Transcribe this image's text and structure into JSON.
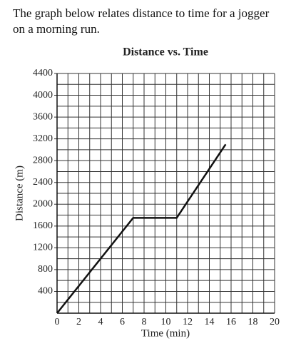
{
  "question": "The graph below relates distance to time for a jogger on a morning run.",
  "chart_data": {
    "type": "line",
    "title": "Distance vs. Time",
    "x_label": "Time (min)",
    "y_label": "Distance (m)",
    "x": [
      0,
      7,
      11,
      15.5
    ],
    "values": [
      0,
      1750,
      1750,
      3100
    ],
    "color": "#111111",
    "xlim": [
      0,
      20
    ],
    "xticks": [
      0,
      2,
      4,
      6,
      8,
      10,
      12,
      14,
      16,
      18,
      20
    ],
    "ylim": [
      0,
      4400
    ],
    "yticks": [
      400,
      800,
      1200,
      1600,
      2000,
      2400,
      2800,
      3200,
      3600,
      4000,
      4400
    ],
    "grid": true
  }
}
